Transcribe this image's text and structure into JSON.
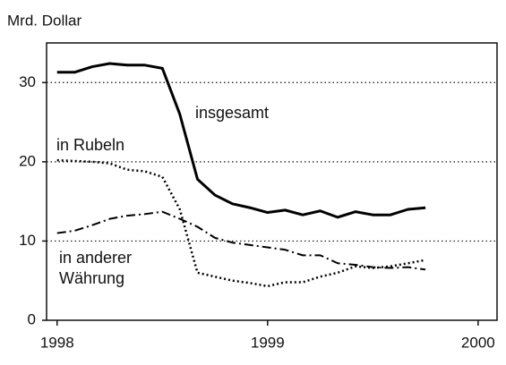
{
  "chart_data": {
    "type": "line",
    "y_label": "Mrd. Dollar",
    "x": [
      1998,
      1998.083,
      1998.167,
      1998.25,
      1998.333,
      1998.417,
      1998.5,
      1998.583,
      1998.667,
      1998.75,
      1998.833,
      1998.917,
      1999,
      1999.083,
      1999.167,
      1999.25,
      1999.333,
      1999.417,
      1999.5,
      1999.583,
      1999.667,
      1999.75
    ],
    "series": [
      {
        "name": "insgesamt",
        "color": "#000000",
        "style": "solid",
        "values": [
          31.3,
          31.3,
          32.0,
          32.4,
          32.2,
          32.2,
          31.8,
          26.0,
          17.8,
          15.8,
          14.7,
          14.2,
          13.6,
          13.9,
          13.3,
          13.8,
          13.0,
          13.7,
          13.3,
          13.3,
          14.0,
          14.2
        ]
      },
      {
        "name": "in Rubeln",
        "color": "#000000",
        "style": "dotted",
        "values": [
          20.2,
          20.1,
          20.0,
          19.8,
          19.0,
          18.8,
          18.1,
          14.0,
          6.0,
          5.5,
          5.0,
          4.7,
          4.3,
          4.8,
          4.8,
          5.5,
          6.0,
          6.8,
          6.6,
          6.8,
          7.2,
          7.6
        ]
      },
      {
        "name": "in anderer Währung",
        "color": "#000000",
        "style": "dashdot",
        "values": [
          11.0,
          11.3,
          12.0,
          12.8,
          13.2,
          13.4,
          13.7,
          12.8,
          11.8,
          10.4,
          9.8,
          9.5,
          9.2,
          8.9,
          8.2,
          8.2,
          7.2,
          7.0,
          6.7,
          6.6,
          6.7,
          6.4
        ]
      }
    ],
    "xlim": [
      1997.95,
      2000.09
    ],
    "xticks": [
      1998,
      1999,
      2000
    ],
    "ylim": [
      0,
      35
    ],
    "yticks": [
      0,
      10,
      20,
      30
    ],
    "grid": true
  }
}
